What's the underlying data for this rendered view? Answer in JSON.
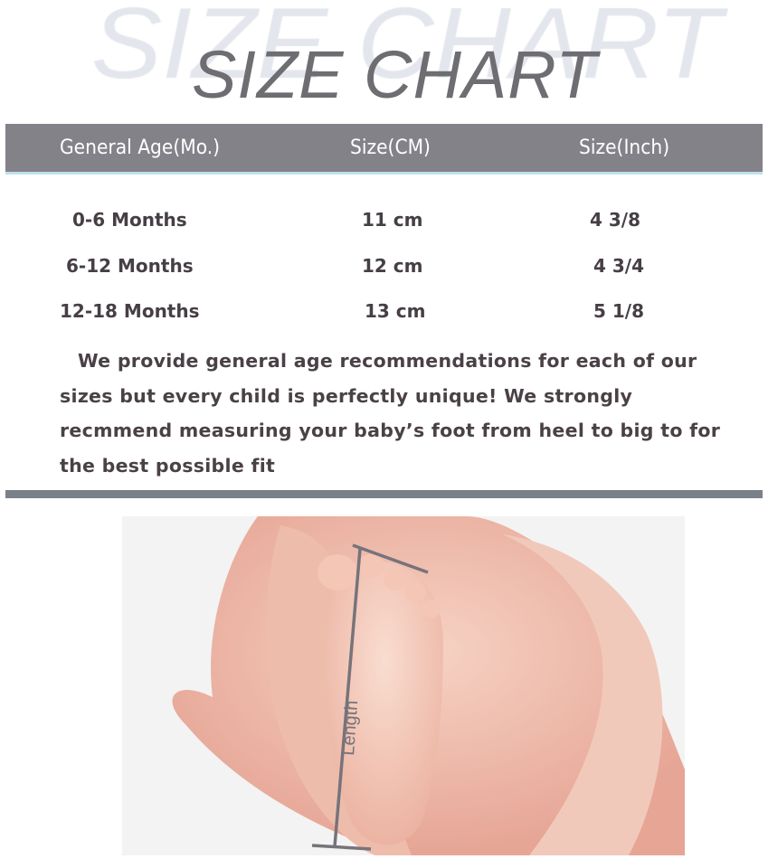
{
  "title": "SIZE CHART",
  "watermark": "SIZE CHART",
  "table": {
    "headers": [
      "General Age(Mo.)",
      "Size(CM)",
      "Size(Inch)"
    ],
    "rows": [
      [
        "0-6 Months",
        "11 cm",
        "4 3/8"
      ],
      [
        "6-12 Months",
        "12 cm",
        "4 3/4"
      ],
      [
        "12-18 Months",
        "13 cm",
        "5 1/8"
      ]
    ]
  },
  "note": "We provide general age recommendations for each of our sizes but every child is perfectly unique! We strongly recmmend measuring your baby’s foot from heel to big to for the best possible fit",
  "photo": {
    "measure_label": "Length"
  },
  "colors": {
    "header": "#838289",
    "title": "#6e6e72",
    "text": "#463f45",
    "divider": "#7a8088"
  }
}
